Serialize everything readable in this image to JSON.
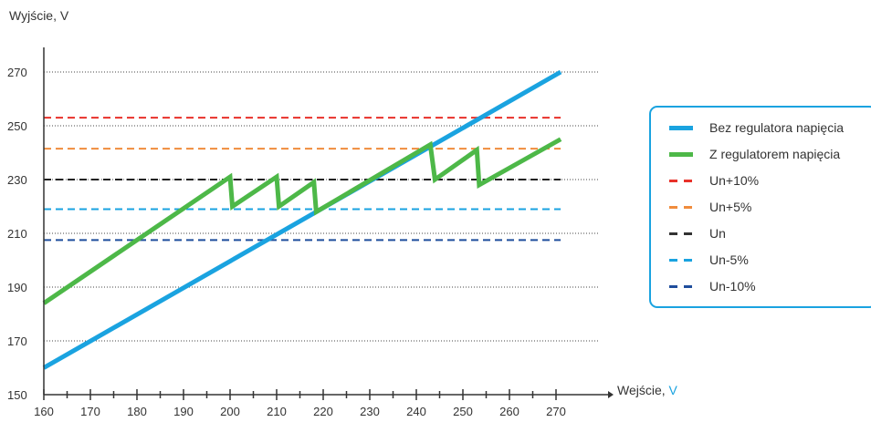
{
  "chart_data": {
    "type": "line",
    "ylabel": "Wyjście, V",
    "xlabel": "Wejście, V",
    "xlabel_unit_color": "#1aa3e0",
    "xlim": [
      160,
      275
    ],
    "ylim": [
      150,
      275
    ],
    "x_ticks": [
      160,
      170,
      180,
      190,
      200,
      210,
      220,
      230,
      240,
      250,
      260,
      270
    ],
    "y_ticks": [
      150,
      170,
      190,
      210,
      230,
      250,
      270
    ],
    "grid": "horizontal dotted",
    "legend_position": "right",
    "series": [
      {
        "name": "Bez regulatora napięcia",
        "color": "#1aa3e0",
        "style": "solid",
        "x": [
          160,
          271
        ],
        "y": [
          160,
          270
        ]
      },
      {
        "name": "Z regulatorem napięcia",
        "color": "#4db848",
        "style": "solid",
        "x": [
          160,
          200,
          200.5,
          210,
          210.5,
          218,
          218.5,
          243,
          244,
          253,
          253.5,
          271
        ],
        "y": [
          184,
          231,
          220,
          231,
          220,
          229,
          218,
          243,
          230,
          241,
          228,
          245
        ]
      }
    ],
    "reference_lines": [
      {
        "name": "Un+10%",
        "y": 253,
        "color": "#e8312a"
      },
      {
        "name": "Un+5%",
        "y": 241.5,
        "color": "#f08c3c"
      },
      {
        "name": "Un",
        "y": 230,
        "color": "#333333",
        "line_color": "#222222"
      },
      {
        "name": "Un-5%",
        "y": 219,
        "color": "#1aa3e0"
      },
      {
        "name": "Un-10%",
        "y": 207.5,
        "color": "#1f4e9c"
      }
    ]
  }
}
